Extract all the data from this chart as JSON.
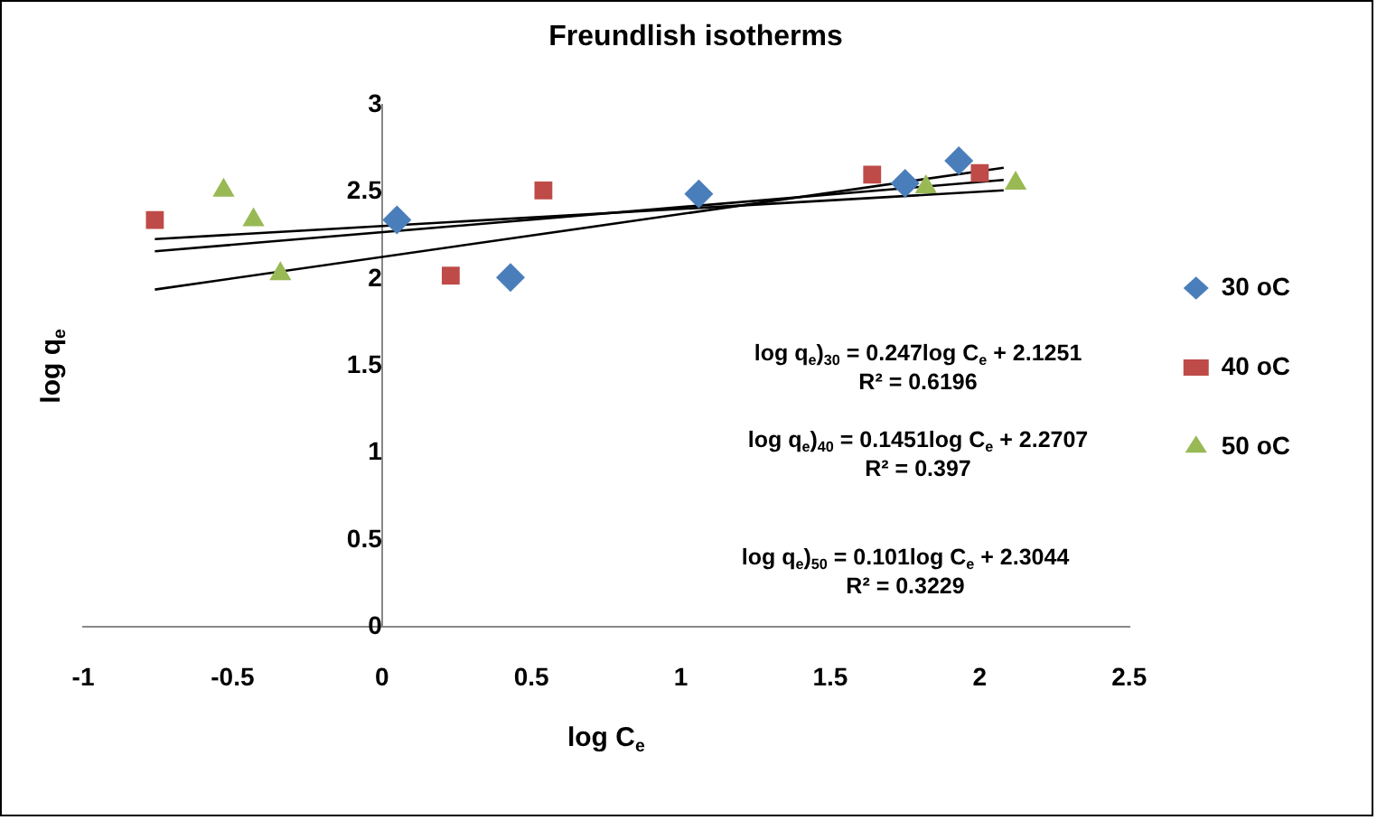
{
  "chart_data": {
    "type": "scatter",
    "title": "Freundlish isotherms",
    "xlabel": "log C$_{e}$",
    "ylabel": "log q$_{e}$",
    "xlim": [
      -1,
      2.5
    ],
    "xticks": [
      -1,
      -0.5,
      0,
      0.5,
      1,
      1.5,
      2,
      2.5
    ],
    "ylim": [
      0,
      3
    ],
    "yticks": [
      0,
      0.5,
      1,
      1.5,
      2,
      2.5,
      3
    ],
    "grid": false,
    "legend": "right",
    "series": [
      {
        "name": "30 oC",
        "color": "#4a7ebb",
        "marker": "diamond",
        "x": [
          0.05,
          0.43,
          1.06,
          1.75,
          1.93
        ],
        "values": [
          2.34,
          2.01,
          2.49,
          2.55,
          2.68
        ]
      },
      {
        "name": "40 oC",
        "color": "#be4b48",
        "marker": "square",
        "x": [
          -0.76,
          0.23,
          0.54,
          1.64,
          2.0
        ],
        "values": [
          2.34,
          2.02,
          2.51,
          2.6,
          2.61
        ]
      },
      {
        "name": "50 oC",
        "color": "#98b954",
        "marker": "triangle",
        "x": [
          -0.53,
          -0.43,
          -0.34,
          1.82,
          2.12
        ],
        "values": [
          2.51,
          2.34,
          2.03,
          2.53,
          2.55
        ]
      },
      {
        "type": "line",
        "color": "#000000",
        "marker": "none",
        "x": [
          -0.76,
          2.08
        ],
        "values": [
          1.94,
          2.64
        ]
      },
      {
        "type": "line",
        "color": "#000000",
        "marker": "none",
        "x": [
          -0.76,
          2.08
        ],
        "values": [
          2.16,
          2.57
        ]
      },
      {
        "type": "line",
        "color": "#000000",
        "marker": "none",
        "x": [
          -0.76,
          2.08
        ],
        "values": [
          2.23,
          2.51
        ]
      }
    ],
    "annotations": [
      "log q$_{e}$)$_{30}$ = 0.247log C$_{e}$ + 2.1251",
      "R² = 0.6196",
      "log q$_{e}$)$_{40}$ = 0.1451log C$_{e}$ + 2.2707",
      "R² = 0.397",
      "log q$_{e}$)$_{50}$ = 0.101log C$_{e}$ + 2.3044",
      "R² = 0.3229"
    ]
  }
}
